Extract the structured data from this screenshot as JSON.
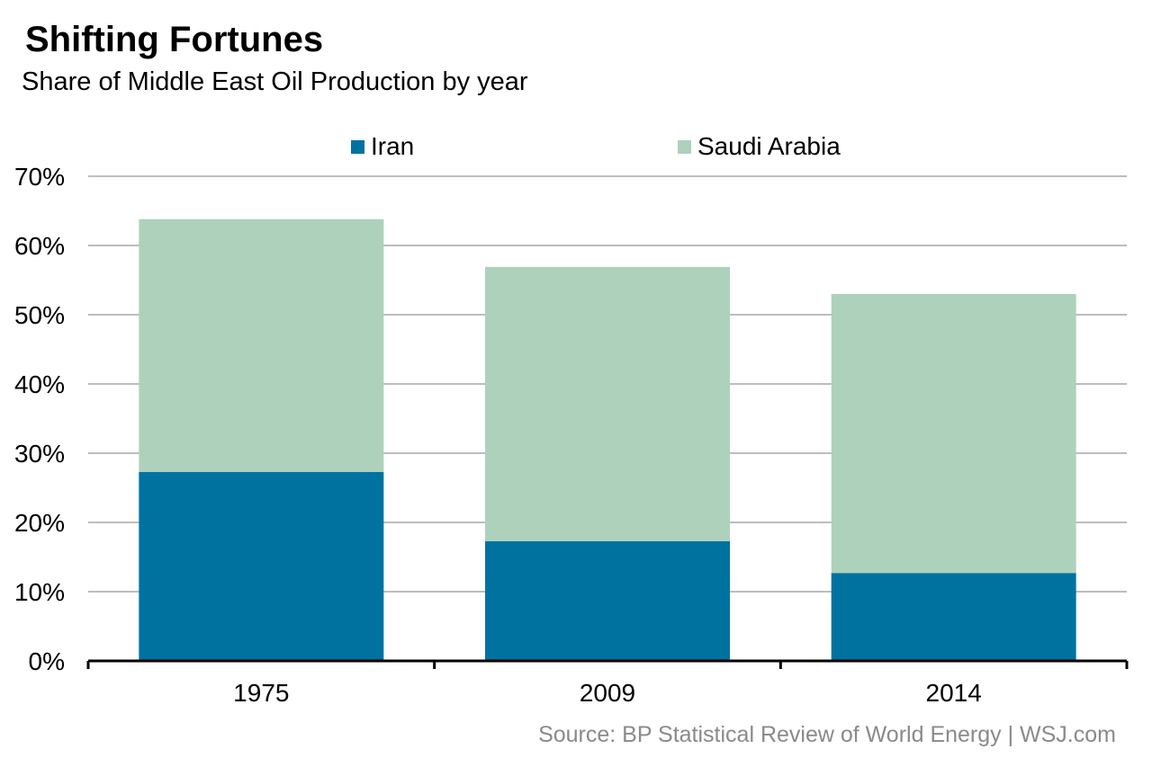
{
  "chart_data": {
    "type": "bar",
    "stacked": true,
    "title": "Shifting Fortunes",
    "subtitle": "Share of Middle East Oil Production by year",
    "categories": [
      "1975",
      "2009",
      "2014"
    ],
    "series": [
      {
        "name": "Iran",
        "color": "#00729f",
        "values": [
          27.3,
          17.3,
          12.7
        ]
      },
      {
        "name": "Saudi Arabia",
        "color": "#aed1bc",
        "values": [
          36.5,
          39.6,
          40.3
        ]
      }
    ],
    "ylim": [
      0,
      70
    ],
    "yticks": [
      0,
      10,
      20,
      30,
      40,
      50,
      60,
      70
    ],
    "ytick_labels": [
      "0%",
      "10%",
      "20%",
      "30%",
      "40%",
      "50%",
      "60%",
      "70%"
    ],
    "grid": true,
    "legend_position": "top",
    "xlabel": "",
    "ylabel": "",
    "source": "Source: BP Statistical Review of World Energy  |  WSJ.com"
  }
}
